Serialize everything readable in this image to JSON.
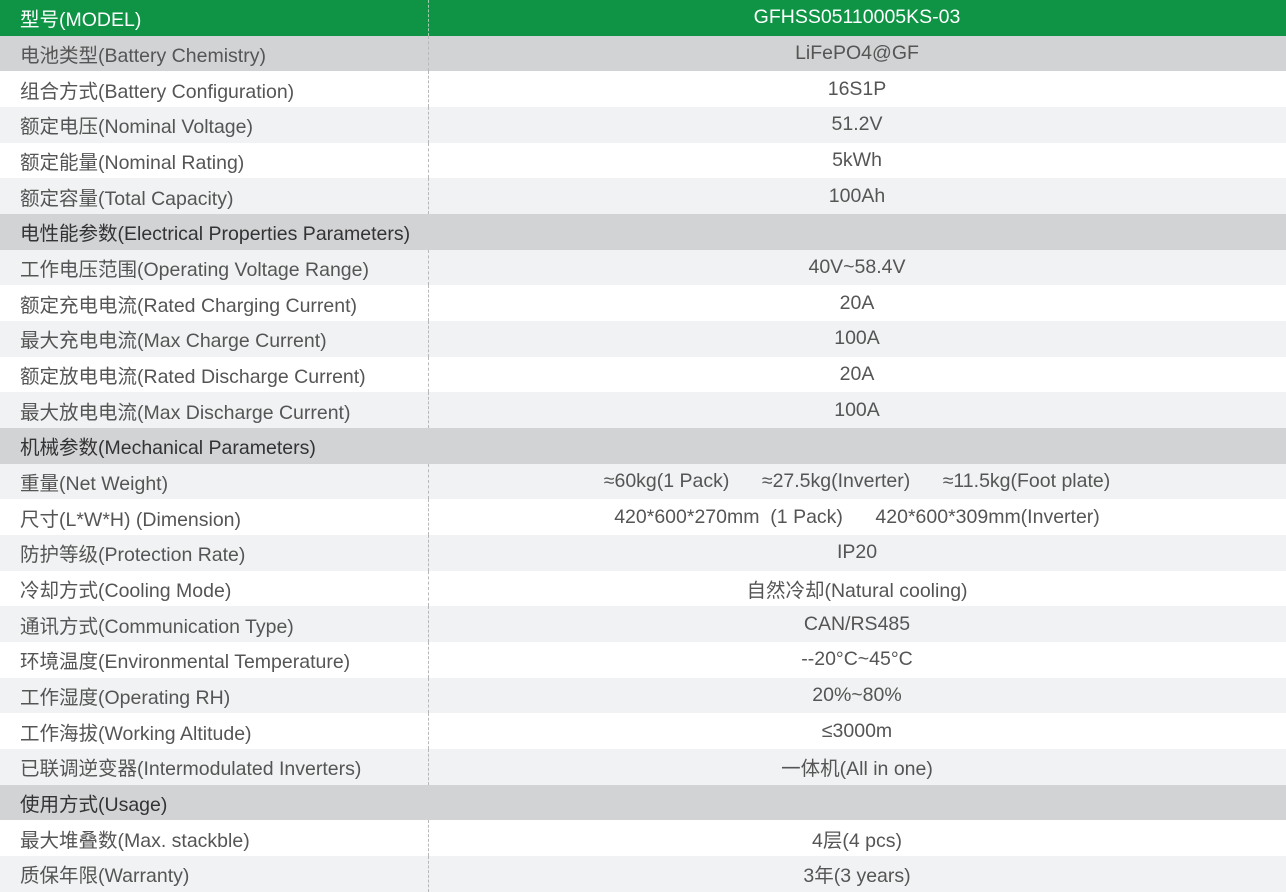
{
  "colors": {
    "header": "#0e9444",
    "section": "#d2d3d5",
    "stripe": "#f1f2f3",
    "text": "#555555"
  },
  "rows": [
    {
      "type": "header",
      "label": "型号(MODEL)",
      "value": "GFHSS05110005KS-03"
    },
    {
      "type": "gray",
      "label": "电池类型(Battery Chemistry)",
      "value": "LiFePO4@GF"
    },
    {
      "type": "white",
      "label": "组合方式(Battery Configuration)",
      "value": "16S1P"
    },
    {
      "type": "light",
      "label": "额定电压(Nominal Voltage)",
      "value": "51.2V"
    },
    {
      "type": "white",
      "label": "额定能量(Nominal Rating)",
      "value": "5kWh"
    },
    {
      "type": "light",
      "label": "额定容量(Total Capacity)",
      "value": "100Ah"
    },
    {
      "type": "section",
      "label": "电性能参数(Electrical Properties Parameters)",
      "value": ""
    },
    {
      "type": "light",
      "label": "工作电压范围(Operating Voltage Range)",
      "value": "40V~58.4V"
    },
    {
      "type": "white",
      "label": "额定充电电流(Rated Charging Current)",
      "value": "20A"
    },
    {
      "type": "light",
      "label": "最大充电电流(Max Charge Current)",
      "value": "100A"
    },
    {
      "type": "white",
      "label": "额定放电电流(Rated Discharge Current)",
      "value": "20A"
    },
    {
      "type": "light",
      "label": "最大放电电流(Max Discharge Current)",
      "value": "100A"
    },
    {
      "type": "section",
      "label": "机械参数(Mechanical Parameters)",
      "value": ""
    },
    {
      "type": "light",
      "label": "重量(Net Weight)",
      "value": "≈60kg(1 Pack)      ≈27.5kg(Inverter)      ≈11.5kg(Foot plate)"
    },
    {
      "type": "white",
      "label": "尺寸(L*W*H) (Dimension)",
      "value": "420*600*270mm  (1 Pack)      420*600*309mm(Inverter)"
    },
    {
      "type": "light",
      "label": "防护等级(Protection Rate)",
      "value": "IP20"
    },
    {
      "type": "white",
      "label": "冷却方式(Cooling Mode)",
      "value": "自然冷却(Natural cooling)"
    },
    {
      "type": "light",
      "label": "通讯方式(Communication Type)",
      "value": "CAN/RS485"
    },
    {
      "type": "white",
      "label": "环境温度(Environmental Temperature)",
      "value": "--20°C~45°C"
    },
    {
      "type": "light",
      "label": "工作湿度(Operating RH)",
      "value": "20%~80%"
    },
    {
      "type": "white",
      "label": "工作海拔(Working Altitude)",
      "value": "≤3000m"
    },
    {
      "type": "light",
      "label": "已联调逆变器(Intermodulated Inverters)",
      "value": "一体机(All in one)"
    },
    {
      "type": "section",
      "label": "使用方式(Usage)",
      "value": ""
    },
    {
      "type": "white",
      "label": "最大堆叠数(Max. stackble)",
      "value": "4层(4 pcs)"
    },
    {
      "type": "light",
      "label": "质保年限(Warranty)",
      "value": "3年(3 years)"
    }
  ]
}
